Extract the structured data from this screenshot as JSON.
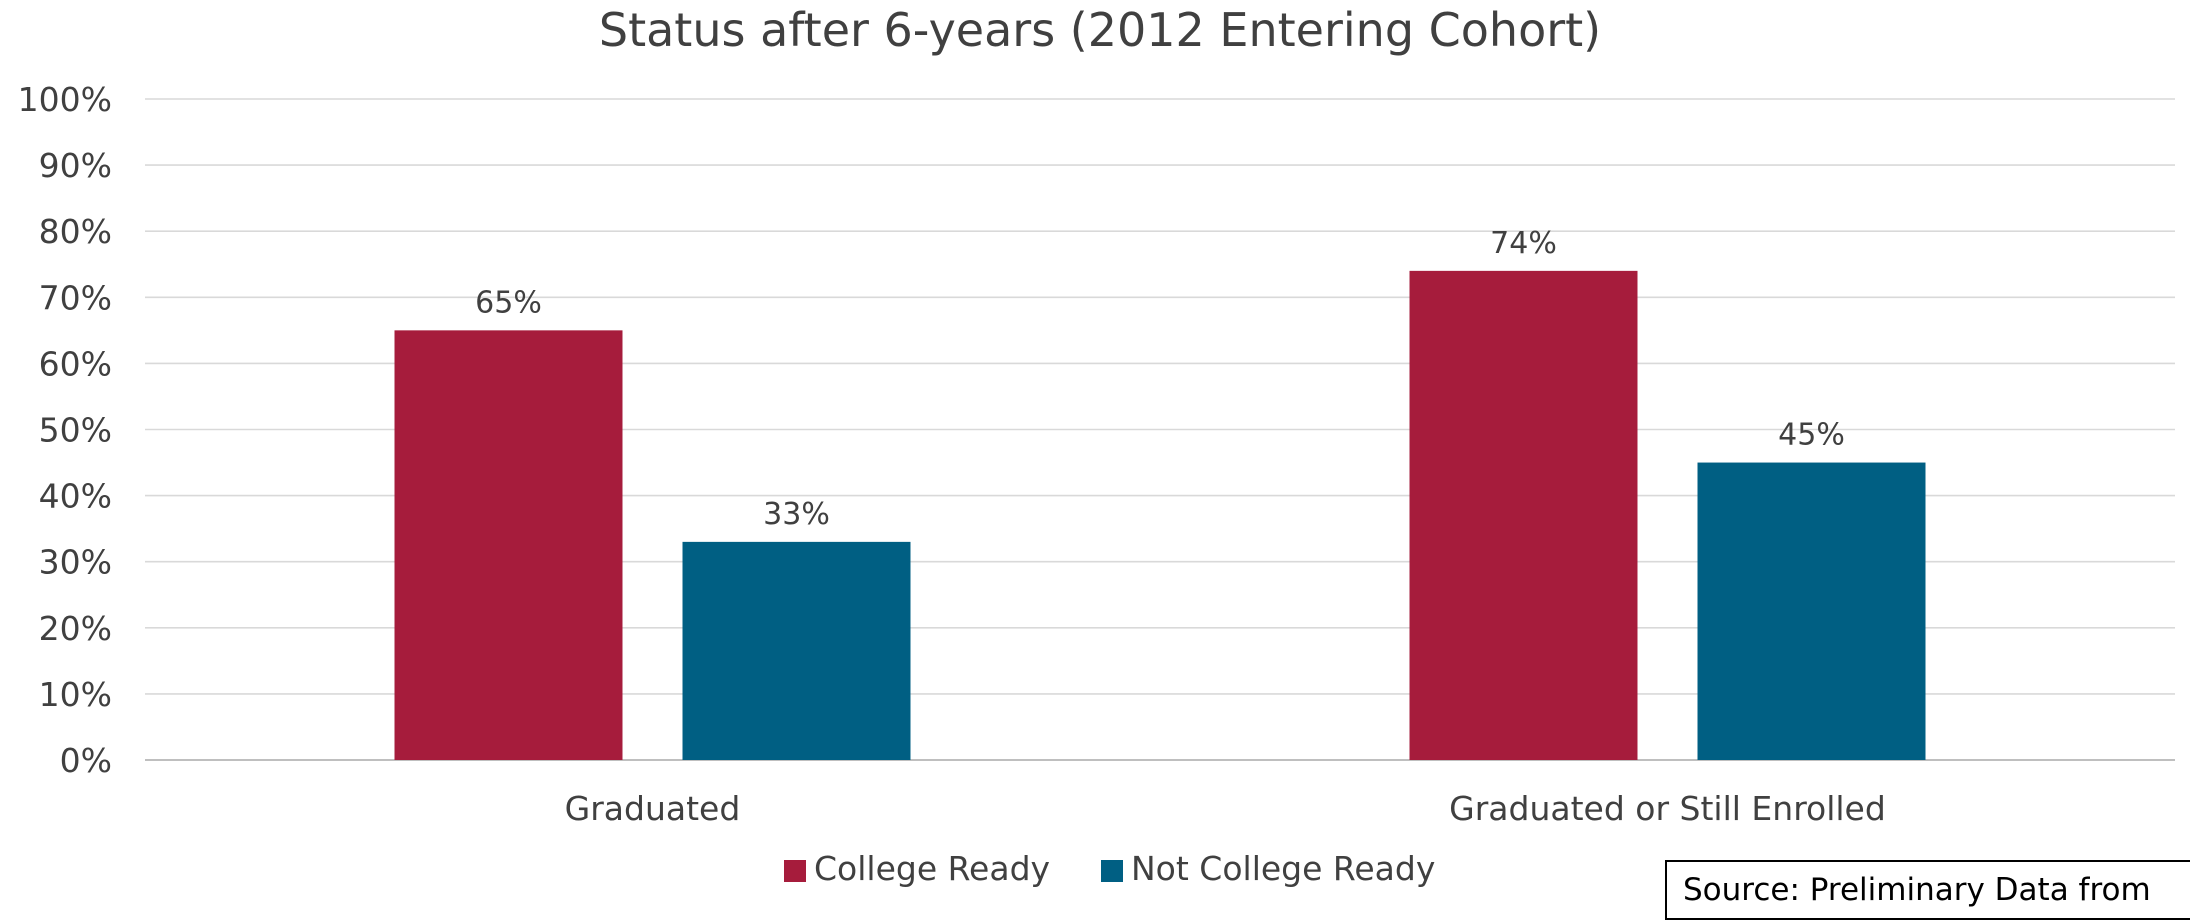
{
  "chart_data": {
    "type": "bar",
    "title": "Status after 6-years (2012 Entering Cohort)",
    "xlabel": "",
    "ylabel": "",
    "categories": [
      "Graduated",
      "Graduated or Still Enrolled"
    ],
    "series": [
      {
        "name": "College Ready",
        "color": "#A61C3C",
        "values": [
          65,
          74
        ],
        "labels": [
          "65%",
          "74%"
        ]
      },
      {
        "name": "Not College Ready",
        "color": "#005F83",
        "values": [
          33,
          45
        ],
        "labels": [
          "33%",
          "45%"
        ]
      }
    ],
    "ylim": [
      0,
      100
    ],
    "yticks": [
      0,
      10,
      20,
      30,
      40,
      50,
      60,
      70,
      80,
      90,
      100
    ],
    "ytick_labels": [
      "0%",
      "10%",
      "20%",
      "30%",
      "40%",
      "50%",
      "60%",
      "70%",
      "80%",
      "90%",
      "100%"
    ],
    "grid": true,
    "legend_position": "bottom"
  },
  "source_note": "Source: Preliminary Data from"
}
